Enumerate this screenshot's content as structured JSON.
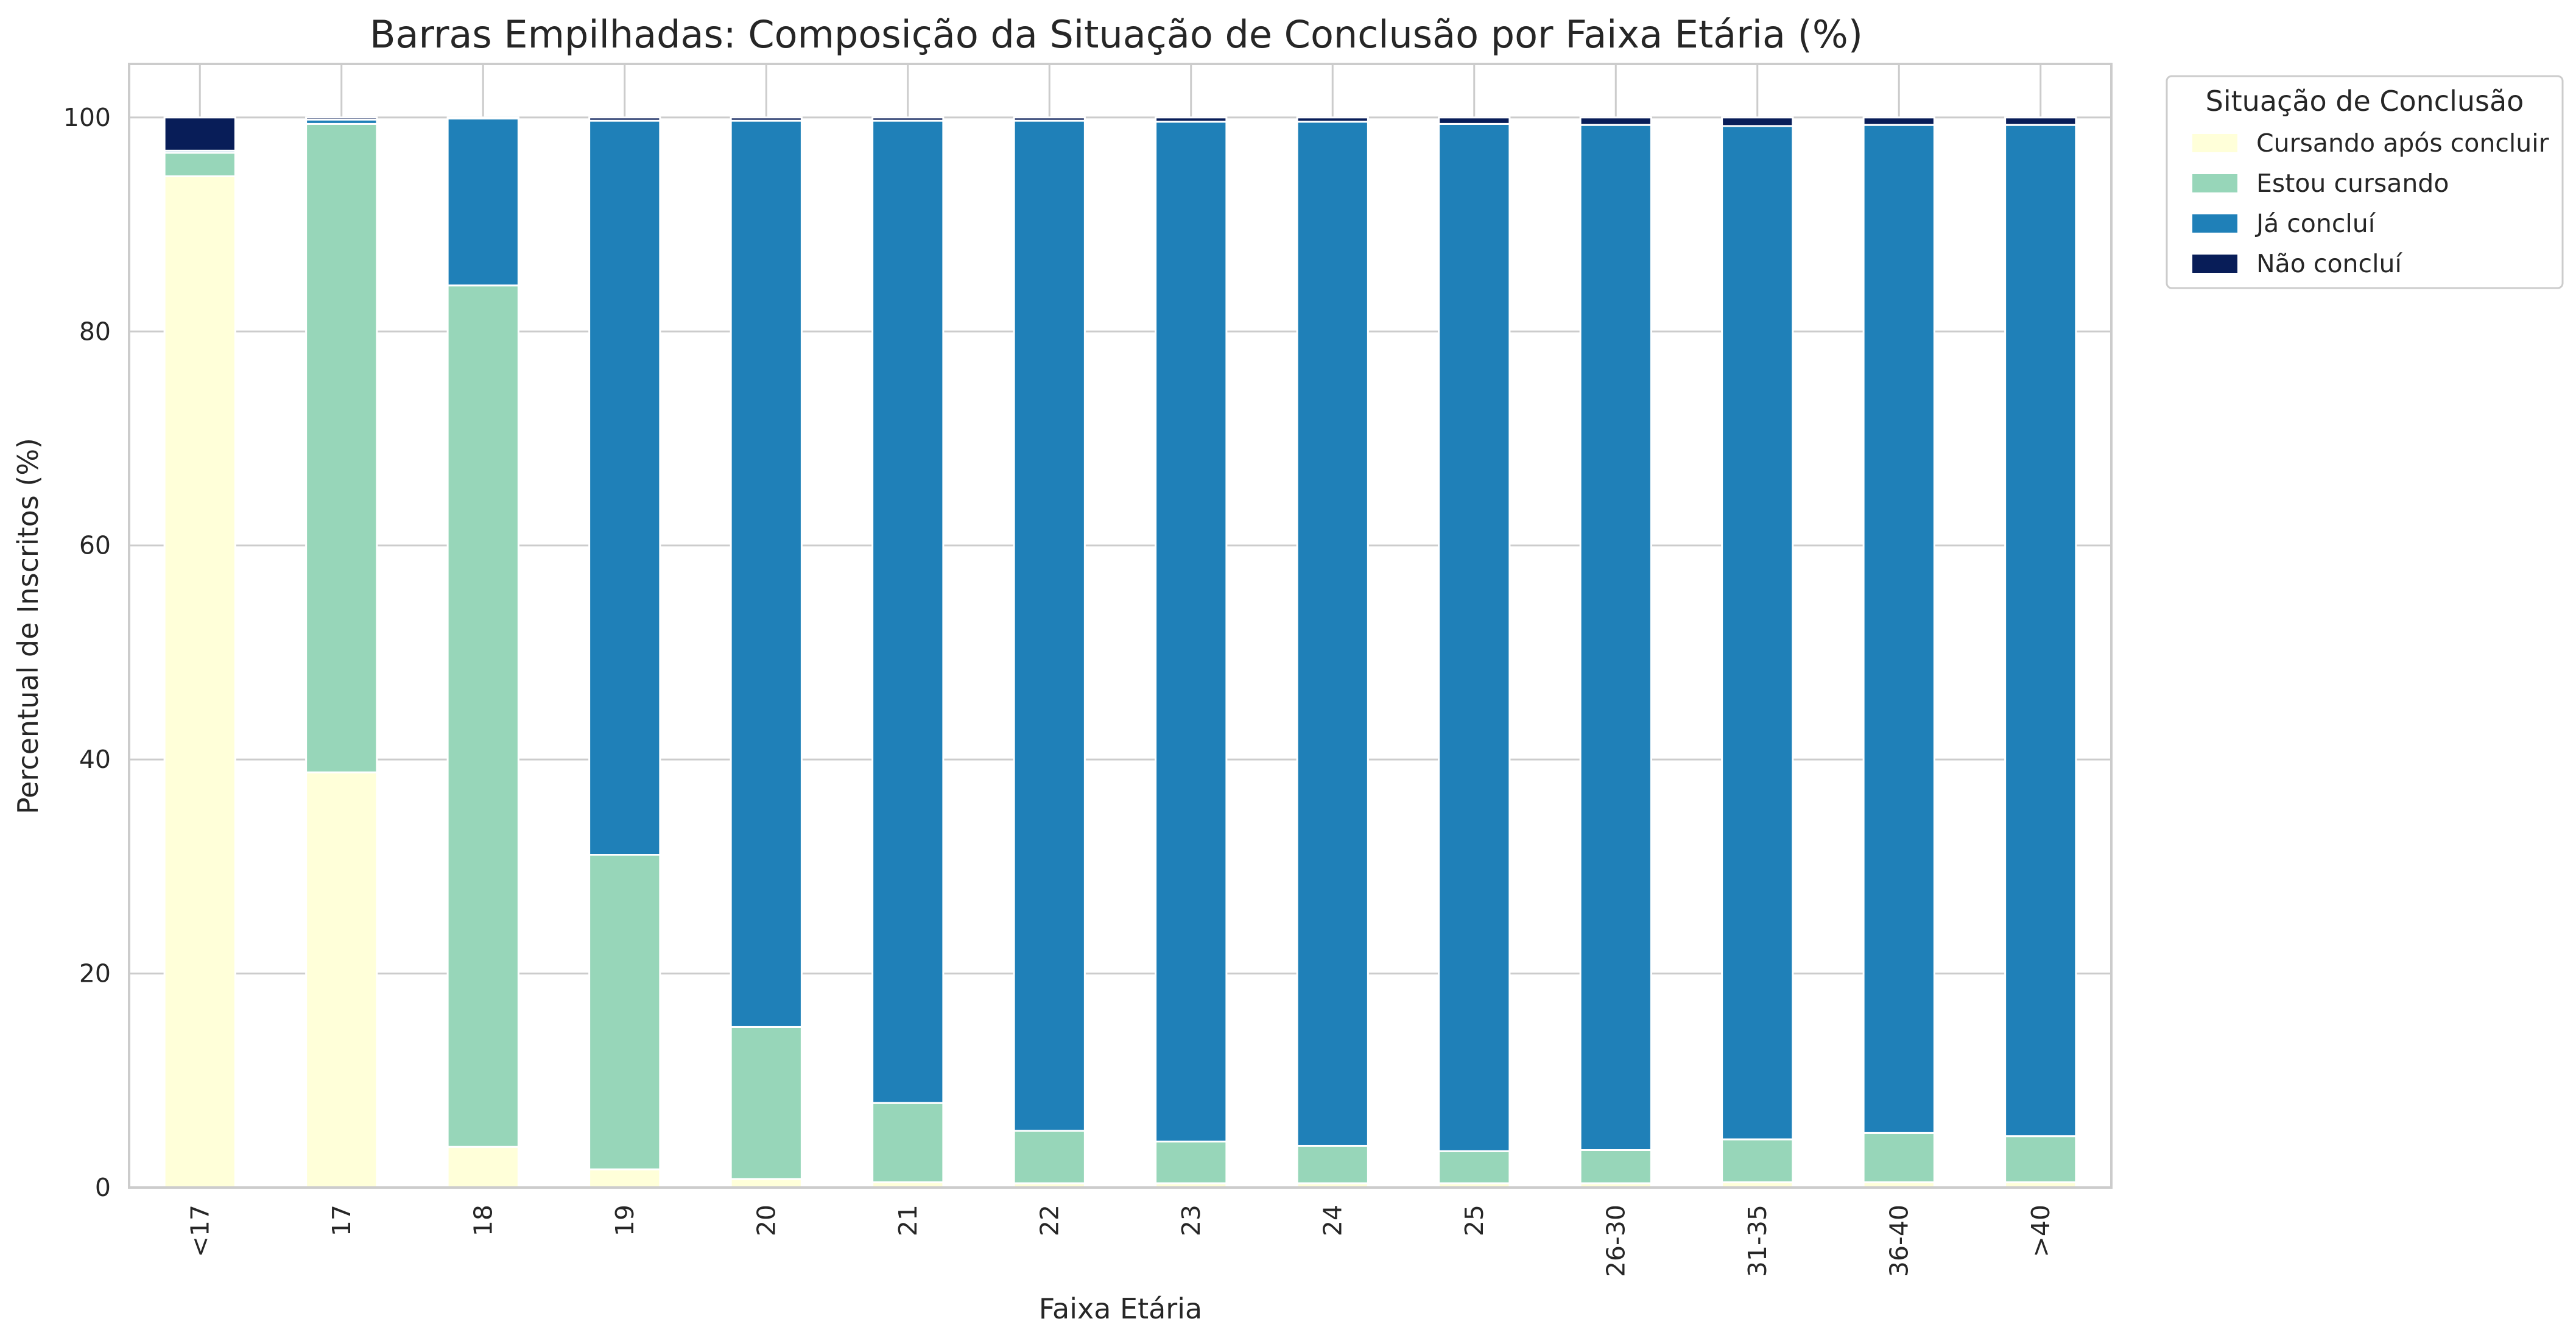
{
  "chart_data": {
    "type": "bar",
    "stacked": true,
    "title": "Barras Empilhadas: Composição da Situação de Conclusão por Faixa Etária (%)",
    "xlabel": "Faixa Etária",
    "ylabel": "Percentual de Inscritos (%)",
    "ylim": [
      0,
      105
    ],
    "yticks": [
      0,
      20,
      40,
      60,
      80,
      100
    ],
    "grid": true,
    "legend": {
      "title": "Situação de Conclusão",
      "placement": "outside-top-right"
    },
    "categories": [
      "<17",
      "17",
      "18",
      "19",
      "20",
      "21",
      "22",
      "23",
      "24",
      "25",
      "26-30",
      "31-35",
      "36-40",
      ">40"
    ],
    "series": [
      {
        "name": "Cursando após concluir",
        "color": "#ffffd9",
        "values": [
          94.5,
          38.8,
          3.8,
          1.7,
          0.8,
          0.5,
          0.4,
          0.4,
          0.4,
          0.4,
          0.4,
          0.5,
          0.5,
          0.5
        ]
      },
      {
        "name": "Estou cursando",
        "color": "#97d6b9",
        "values": [
          2.2,
          60.6,
          80.5,
          29.4,
          14.2,
          7.4,
          4.9,
          3.9,
          3.5,
          3.0,
          3.1,
          4.0,
          4.6,
          4.3
        ]
      },
      {
        "name": "Já concluí",
        "color": "#1f80b8",
        "values": [
          0.2,
          0.4,
          15.6,
          68.6,
          84.7,
          91.8,
          94.4,
          95.3,
          95.7,
          96.0,
          95.8,
          94.7,
          94.2,
          94.5
        ]
      },
      {
        "name": "Não concluí",
        "color": "#081d58",
        "values": [
          3.1,
          0.2,
          0.1,
          0.3,
          0.3,
          0.3,
          0.3,
          0.4,
          0.4,
          0.6,
          0.7,
          0.8,
          0.7,
          0.7
        ]
      }
    ]
  }
}
